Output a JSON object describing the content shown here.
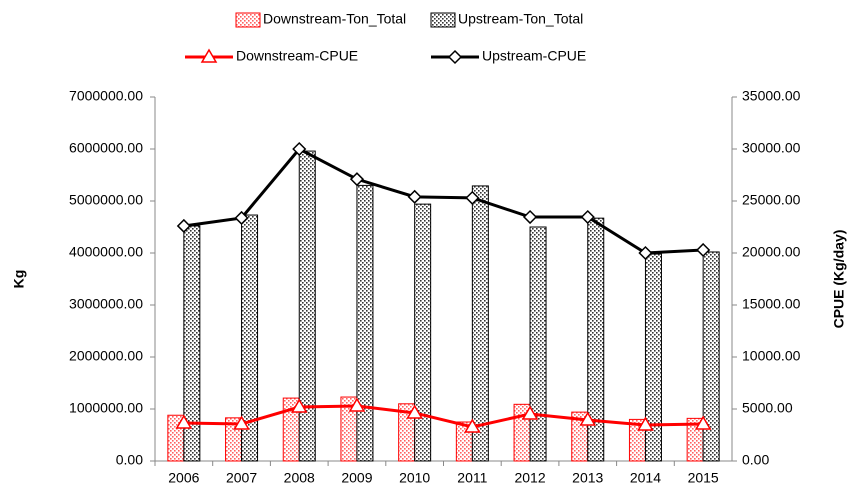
{
  "chart_data": {
    "type": "bar",
    "categories": [
      "2006",
      "2007",
      "2008",
      "2009",
      "2010",
      "2011",
      "2012",
      "2013",
      "2014",
      "2015"
    ],
    "y_label": "Kg",
    "y2_label": "CPUE (Kg/day)",
    "ylim": [
      0,
      7000000
    ],
    "yticks": [
      {
        "value": 0,
        "label": "0.00"
      },
      {
        "value": 1000000,
        "label": "1000000.00"
      },
      {
        "value": 2000000,
        "label": "2000000.00"
      },
      {
        "value": 3000000,
        "label": "3000000.00"
      },
      {
        "value": 4000000,
        "label": "4000000.00"
      },
      {
        "value": 5000000,
        "label": "5000000.00"
      },
      {
        "value": 6000000,
        "label": "6000000.00"
      },
      {
        "value": 7000000,
        "label": "7000000.00"
      }
    ],
    "y2lim": [
      0,
      35000
    ],
    "y2ticks": [
      {
        "value": 0,
        "label": "0.00"
      },
      {
        "value": 5000,
        "label": "5000.00"
      },
      {
        "value": 10000,
        "label": "10000.00"
      },
      {
        "value": 15000,
        "label": "15000.00"
      },
      {
        "value": 20000,
        "label": "20000.00"
      },
      {
        "value": 25000,
        "label": "25000.00"
      },
      {
        "value": 30000,
        "label": "30000.00"
      },
      {
        "value": 35000,
        "label": "35000.00"
      }
    ],
    "series": [
      {
        "name": "Downstream-Ton_Total",
        "type": "bar",
        "color": "#ff0000",
        "values": [
          880000,
          830000,
          1210000,
          1230000,
          1100000,
          750000,
          1090000,
          940000,
          800000,
          820000
        ]
      },
      {
        "name": "Upstream-Ton_Total",
        "type": "bar",
        "color": "#000000",
        "values": [
          4520000,
          4730000,
          5960000,
          5300000,
          4940000,
          5290000,
          4500000,
          4670000,
          3980000,
          4020000
        ]
      },
      {
        "name": "Downstream-CPUE",
        "type": "line",
        "axis": "y2",
        "color": "#ff0000",
        "marker": "triangle",
        "values": [
          3650,
          3560,
          5190,
          5290,
          4620,
          3270,
          4520,
          3940,
          3460,
          3560
        ]
      },
      {
        "name": "Upstream-CPUE",
        "type": "line",
        "axis": "y2",
        "color": "#000000",
        "marker": "diamond",
        "values": [
          22600,
          23370,
          30000,
          27100,
          25400,
          25300,
          23460,
          23460,
          20000,
          20290
        ]
      }
    ]
  }
}
